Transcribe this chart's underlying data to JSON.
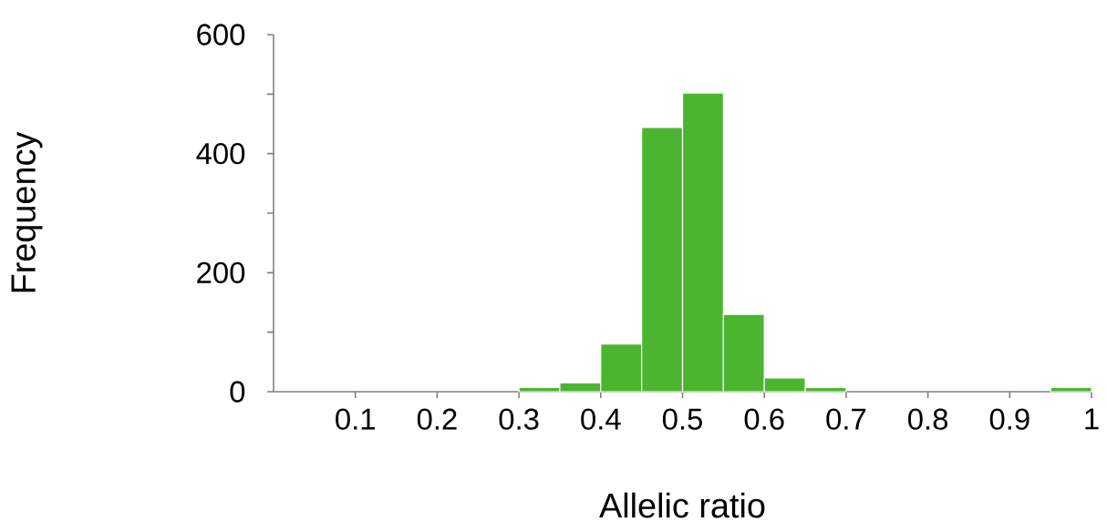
{
  "chart_data": {
    "type": "histogram",
    "xlabel": "Allelic ratio",
    "ylabel": "Frequency",
    "color": "#4cb530",
    "bins": [
      0,
      0.05,
      0.1,
      0.15,
      0.2,
      0.25,
      0.3,
      0.35,
      0.4,
      0.45,
      0.5,
      0.55,
      0.6,
      0.65,
      0.7,
      0.75,
      0.8,
      0.85,
      0.9,
      0.95,
      1
    ],
    "values": [
      0,
      0,
      0,
      0,
      0,
      0,
      7,
      15,
      80,
      444,
      502,
      130,
      23,
      7,
      0,
      0,
      0,
      0,
      0,
      7
    ],
    "xlim": [
      0,
      1
    ],
    "ylim": [
      0,
      600
    ],
    "xticks": [
      0.1,
      0.2,
      0.3,
      0.4,
      0.5,
      0.6,
      0.7,
      0.8,
      0.9,
      1
    ],
    "yticks": [
      0,
      {
        "value": 100,
        "label": null
      },
      200,
      {
        "value": 300,
        "label": null
      },
      400,
      {
        "value": 500,
        "label": null
      },
      600
    ]
  }
}
